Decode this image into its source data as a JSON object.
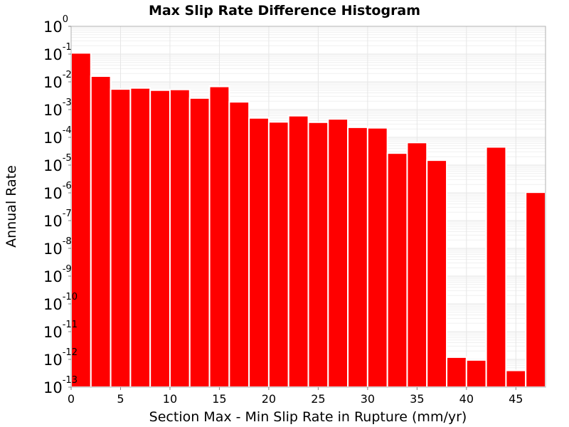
{
  "chart_data": {
    "type": "bar",
    "title": "Max Slip Rate Difference Histogram",
    "xlabel": "Section Max - Min Slip Rate in Rupture (mm/yr)",
    "ylabel": "Annual Rate",
    "yscale": "log",
    "xlim": [
      0,
      48
    ],
    "ylim": [
      1e-13,
      1
    ],
    "xticks": [
      0,
      5,
      10,
      15,
      20,
      25,
      30,
      35,
      40,
      45
    ],
    "yticks": [
      {
        "base": "10",
        "exp": "0",
        "value": 1
      },
      {
        "base": "10",
        "exp": "-1",
        "value": 0.1
      },
      {
        "base": "10",
        "exp": "-2",
        "value": 0.01
      },
      {
        "base": "10",
        "exp": "-3",
        "value": 0.001
      },
      {
        "base": "10",
        "exp": "-4",
        "value": 0.0001
      },
      {
        "base": "10",
        "exp": "-5",
        "value": 1e-05
      },
      {
        "base": "10",
        "exp": "-6",
        "value": 1e-06
      },
      {
        "base": "10",
        "exp": "-7",
        "value": 1e-07
      },
      {
        "base": "10",
        "exp": "-8",
        "value": 1e-08
      },
      {
        "base": "10",
        "exp": "-9",
        "value": 1e-09
      },
      {
        "base": "10",
        "exp": "-10",
        "value": 1e-10
      },
      {
        "base": "10",
        "exp": "-11",
        "value": 1e-11
      },
      {
        "base": "10",
        "exp": "-12",
        "value": 1e-12
      },
      {
        "base": "10",
        "exp": "-13",
        "value": 1e-13
      }
    ],
    "bin_width": 2,
    "bins": [
      {
        "x": 1,
        "value": 0.11
      },
      {
        "x": 3,
        "value": 0.016
      },
      {
        "x": 5,
        "value": 0.0055
      },
      {
        "x": 7,
        "value": 0.006
      },
      {
        "x": 9,
        "value": 0.005
      },
      {
        "x": 11,
        "value": 0.0053
      },
      {
        "x": 13,
        "value": 0.0026
      },
      {
        "x": 15,
        "value": 0.0068
      },
      {
        "x": 17,
        "value": 0.0019
      },
      {
        "x": 19,
        "value": 0.0005
      },
      {
        "x": 21,
        "value": 0.00036
      },
      {
        "x": 23,
        "value": 0.0006
      },
      {
        "x": 25,
        "value": 0.00035
      },
      {
        "x": 27,
        "value": 0.00046
      },
      {
        "x": 29,
        "value": 0.00023
      },
      {
        "x": 31,
        "value": 0.00022
      },
      {
        "x": 33,
        "value": 2.7e-05
      },
      {
        "x": 35,
        "value": 6.5e-05
      },
      {
        "x": 37,
        "value": 1.5e-05
      },
      {
        "x": 39,
        "value": 1.2e-12
      },
      {
        "x": 41,
        "value": 9.5e-13
      },
      {
        "x": 43,
        "value": 4.5e-05
      },
      {
        "x": 45,
        "value": 4e-13
      },
      {
        "x": 47,
        "value": 1.05e-06
      }
    ],
    "colors": {
      "bar": "#ff0000",
      "bar_outline": "#ffffff",
      "grid": "#e6e6e6",
      "frame": "#b0b0b0"
    },
    "grid": true,
    "legend": "none"
  }
}
